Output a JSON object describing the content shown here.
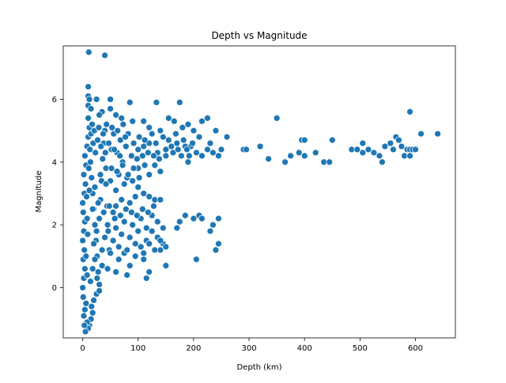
{
  "chart_data": {
    "type": "scatter",
    "title": "Depth vs Magnitude",
    "xlabel": "Depth (km)",
    "ylabel": "Magnitude",
    "xlim": [
      -35,
      672
    ],
    "ylim": [
      -1.6,
      7.7
    ],
    "xticks": [
      0,
      100,
      200,
      300,
      400,
      500,
      600
    ],
    "yticks": [
      0,
      2,
      4,
      6
    ],
    "grid": false,
    "legend": "none",
    "marker_color": "#1f77b4",
    "marker_edge": "#ffffff",
    "points": [
      [
        11,
        7.5
      ],
      [
        40,
        7.4
      ],
      [
        10,
        6.4
      ],
      [
        10,
        6.1
      ],
      [
        12,
        6.0
      ],
      [
        25,
        6.0
      ],
      [
        50,
        6.0
      ],
      [
        85,
        5.9
      ],
      [
        133,
        5.9
      ],
      [
        175,
        5.9
      ],
      [
        10,
        5.8
      ],
      [
        15,
        5.7
      ],
      [
        35,
        5.6
      ],
      [
        50,
        5.7
      ],
      [
        30,
        5.5
      ],
      [
        60,
        5.5
      ],
      [
        70,
        5.4
      ],
      [
        155,
        5.4
      ],
      [
        225,
        5.4
      ],
      [
        350,
        5.4
      ],
      [
        590,
        5.6
      ],
      [
        90,
        5.3
      ],
      [
        110,
        5.3
      ],
      [
        165,
        5.3
      ],
      [
        190,
        5.2
      ],
      [
        215,
        5.3
      ],
      [
        120,
        5.1
      ],
      [
        140,
        5.0
      ],
      [
        180,
        5.1
      ],
      [
        200,
        5.0
      ],
      [
        240,
        5.0
      ],
      [
        260,
        4.8
      ],
      [
        210,
        4.8
      ],
      [
        230,
        4.6
      ],
      [
        250,
        4.4
      ],
      [
        155,
        4.7
      ],
      [
        170,
        4.6
      ],
      [
        185,
        4.5
      ],
      [
        195,
        4.5
      ],
      [
        205,
        4.3
      ],
      [
        215,
        4.2
      ],
      [
        225,
        4.4
      ],
      [
        235,
        4.3
      ],
      [
        245,
        4.2
      ],
      [
        190,
        4.0
      ],
      [
        150,
        4.4
      ],
      [
        135,
        4.3
      ],
      [
        120,
        4.6
      ],
      [
        100,
        4.4
      ],
      [
        110,
        4.5
      ],
      [
        130,
        3.9
      ],
      [
        140,
        3.7
      ],
      [
        120,
        3.6
      ],
      [
        100,
        3.8
      ],
      [
        80,
        3.5
      ],
      [
        90,
        3.4
      ],
      [
        65,
        3.6
      ],
      [
        75,
        3.3
      ],
      [
        50,
        3.4
      ],
      [
        60,
        3.1
      ],
      [
        100,
        3.2
      ],
      [
        110,
        3.0
      ],
      [
        120,
        2.9
      ],
      [
        130,
        2.8
      ],
      [
        140,
        2.8
      ],
      [
        95,
        2.9
      ],
      [
        85,
        2.7
      ],
      [
        70,
        2.8
      ],
      [
        60,
        2.6
      ],
      [
        55,
        2.4
      ],
      [
        290,
        4.4
      ],
      [
        295,
        4.4
      ],
      [
        320,
        4.5
      ],
      [
        335,
        4.1
      ],
      [
        365,
        4.0
      ],
      [
        375,
        4.2
      ],
      [
        390,
        4.3
      ],
      [
        395,
        4.7
      ],
      [
        400,
        4.7
      ],
      [
        400,
        4.2
      ],
      [
        420,
        4.3
      ],
      [
        435,
        4.0
      ],
      [
        445,
        4.0
      ],
      [
        450,
        4.7
      ],
      [
        485,
        4.4
      ],
      [
        495,
        4.4
      ],
      [
        505,
        4.6
      ],
      [
        505,
        4.3
      ],
      [
        515,
        4.4
      ],
      [
        525,
        4.3
      ],
      [
        535,
        4.2
      ],
      [
        540,
        4.0
      ],
      [
        545,
        4.5
      ],
      [
        555,
        4.6
      ],
      [
        560,
        4.4
      ],
      [
        565,
        4.8
      ],
      [
        570,
        4.7
      ],
      [
        575,
        4.5
      ],
      [
        580,
        4.2
      ],
      [
        585,
        4.4
      ],
      [
        590,
        4.4
      ],
      [
        590,
        4.2
      ],
      [
        595,
        4.4
      ],
      [
        600,
        4.4
      ],
      [
        610,
        4.9
      ],
      [
        640,
        4.9
      ],
      [
        170,
        1.9
      ],
      [
        175,
        2.1
      ],
      [
        185,
        2.3
      ],
      [
        200,
        2.2
      ],
      [
        210,
        2.3
      ],
      [
        215,
        2.2
      ],
      [
        230,
        1.8
      ],
      [
        235,
        2.0
      ],
      [
        245,
        2.2
      ],
      [
        245,
        1.4
      ],
      [
        240,
        1.2
      ],
      [
        205,
        0.9
      ],
      [
        150,
        0.7
      ],
      [
        140,
        1.2
      ],
      [
        145,
        1.4
      ],
      [
        135,
        1.6
      ],
      [
        125,
        1.8
      ],
      [
        115,
        1.5
      ],
      [
        105,
        1.3
      ],
      [
        110,
        0.9
      ],
      [
        95,
        1.0
      ],
      [
        85,
        0.7
      ],
      [
        75,
        1.1
      ],
      [
        115,
        0.3
      ],
      [
        120,
        0.5
      ],
      [
        80,
        0.4
      ],
      [
        60,
        0.5
      ],
      [
        65,
        0.9
      ],
      [
        45,
        0.6
      ],
      [
        35,
        0.7
      ],
      [
        30,
        0.1
      ],
      [
        25,
        -0.2
      ],
      [
        20,
        -0.4
      ],
      [
        18,
        -0.8
      ],
      [
        15,
        -1.0
      ],
      [
        12,
        -1.2
      ],
      [
        10,
        -1.3
      ],
      [
        8,
        -1.1
      ],
      [
        5,
        -1.4
      ],
      [
        3,
        -1.2
      ],
      [
        2,
        -0.9
      ],
      [
        4,
        -0.7
      ],
      [
        6,
        -0.5
      ],
      [
        1,
        -0.3
      ],
      [
        0,
        0.0
      ],
      [
        2,
        0.3
      ],
      [
        4,
        0.6
      ],
      [
        1,
        0.9
      ],
      [
        3,
        1.2
      ],
      [
        0,
        1.5
      ],
      [
        2,
        1.8
      ],
      [
        4,
        2.1
      ],
      [
        1,
        2.4
      ],
      [
        0,
        2.7
      ],
      [
        3,
        3.0
      ],
      [
        5,
        3.3
      ],
      [
        2,
        3.6
      ],
      [
        6,
        3.9
      ],
      [
        4,
        4.2
      ],
      [
        8,
        4.5
      ],
      [
        10,
        4.8
      ],
      [
        12,
        5.1
      ],
      [
        10,
        5.4
      ],
      [
        14,
        4.0
      ],
      [
        16,
        3.5
      ],
      [
        18,
        3.0
      ],
      [
        20,
        2.5
      ],
      [
        22,
        2.0
      ],
      [
        24,
        1.5
      ],
      [
        26,
        1.0
      ],
      [
        28,
        0.5
      ],
      [
        30,
        2.2
      ],
      [
        32,
        2.8
      ],
      [
        34,
        3.4
      ],
      [
        36,
        4.1
      ],
      [
        38,
        4.6
      ],
      [
        40,
        5.0
      ],
      [
        42,
        3.8
      ],
      [
        44,
        2.6
      ],
      [
        46,
        1.8
      ],
      [
        48,
        1.2
      ],
      [
        52,
        4.4
      ],
      [
        56,
        4.9
      ],
      [
        62,
        4.3
      ],
      [
        68,
        4.7
      ],
      [
        72,
        4.0
      ],
      [
        78,
        4.5
      ],
      [
        82,
        4.9
      ],
      [
        88,
        4.2
      ],
      [
        92,
        4.6
      ],
      [
        98,
        4.1
      ],
      [
        102,
        4.8
      ],
      [
        108,
        4.2
      ],
      [
        112,
        4.7
      ],
      [
        118,
        4.3
      ],
      [
        125,
        4.9
      ],
      [
        128,
        4.2
      ],
      [
        132,
        4.6
      ],
      [
        138,
        4.1
      ],
      [
        145,
        4.8
      ],
      [
        150,
        4.2
      ],
      [
        160,
        4.5
      ],
      [
        163,
        4.3
      ],
      [
        168,
        4.9
      ],
      [
        172,
        4.4
      ],
      [
        178,
        4.2
      ],
      [
        182,
        4.7
      ],
      [
        188,
        4.4
      ],
      [
        192,
        4.2
      ],
      [
        198,
        4.6
      ],
      [
        20,
        1.4
      ],
      [
        25,
        1.8
      ],
      [
        35,
        1.2
      ],
      [
        40,
        1.6
      ],
      [
        45,
        2.0
      ],
      [
        50,
        1.1
      ],
      [
        55,
        1.5
      ],
      [
        60,
        1.9
      ],
      [
        65,
        1.3
      ],
      [
        70,
        1.7
      ],
      [
        75,
        2.1
      ],
      [
        80,
        1.2
      ],
      [
        85,
        1.6
      ],
      [
        90,
        2.0
      ],
      [
        95,
        1.4
      ],
      [
        100,
        1.8
      ],
      [
        105,
        2.2
      ],
      [
        110,
        1.1
      ],
      [
        115,
        1.9
      ],
      [
        120,
        1.4
      ],
      [
        125,
        2.3
      ],
      [
        130,
        1.2
      ],
      [
        135,
        2.1
      ],
      [
        140,
        1.5
      ],
      [
        145,
        1.9
      ],
      [
        150,
        1.3
      ],
      [
        128,
        2.6
      ],
      [
        118,
        2.4
      ],
      [
        108,
        2.5
      ],
      [
        98,
        2.3
      ],
      [
        88,
        2.4
      ],
      [
        78,
        2.5
      ],
      [
        68,
        2.3
      ],
      [
        58,
        2.2
      ],
      [
        48,
        2.6
      ],
      [
        38,
        2.4
      ],
      [
        28,
        2.7
      ],
      [
        18,
        2.5
      ],
      [
        8,
        2.2
      ],
      [
        12,
        3.1
      ],
      [
        22,
        3.2
      ],
      [
        32,
        3.6
      ],
      [
        42,
        3.3
      ],
      [
        52,
        3.8
      ],
      [
        62,
        3.7
      ],
      [
        72,
        3.9
      ],
      [
        82,
        3.6
      ],
      [
        92,
        3.8
      ],
      [
        102,
        3.5
      ],
      [
        112,
        3.9
      ],
      [
        14,
        0.2
      ],
      [
        18,
        0.6
      ],
      [
        22,
        0.9
      ],
      [
        26,
        0.3
      ],
      [
        30,
        -0.1
      ],
      [
        16,
        -0.6
      ],
      [
        8,
        0.4
      ],
      [
        6,
        1.0
      ],
      [
        9,
        1.7
      ],
      [
        7,
        2.9
      ],
      [
        11,
        3.8
      ],
      [
        13,
        4.4
      ],
      [
        15,
        4.9
      ],
      [
        17,
        5.2
      ],
      [
        19,
        4.6
      ],
      [
        21,
        5.0
      ],
      [
        23,
        4.3
      ],
      [
        27,
        4.7
      ],
      [
        29,
        5.1
      ],
      [
        33,
        4.5
      ],
      [
        37,
        4.9
      ],
      [
        41,
        4.3
      ],
      [
        43,
        5.2
      ],
      [
        47,
        4.6
      ],
      [
        53,
        5.1
      ],
      [
        57,
        4.4
      ],
      [
        63,
        5.0
      ],
      [
        67,
        4.2
      ],
      [
        73,
        5.2
      ],
      [
        77,
        4.8
      ]
    ]
  }
}
